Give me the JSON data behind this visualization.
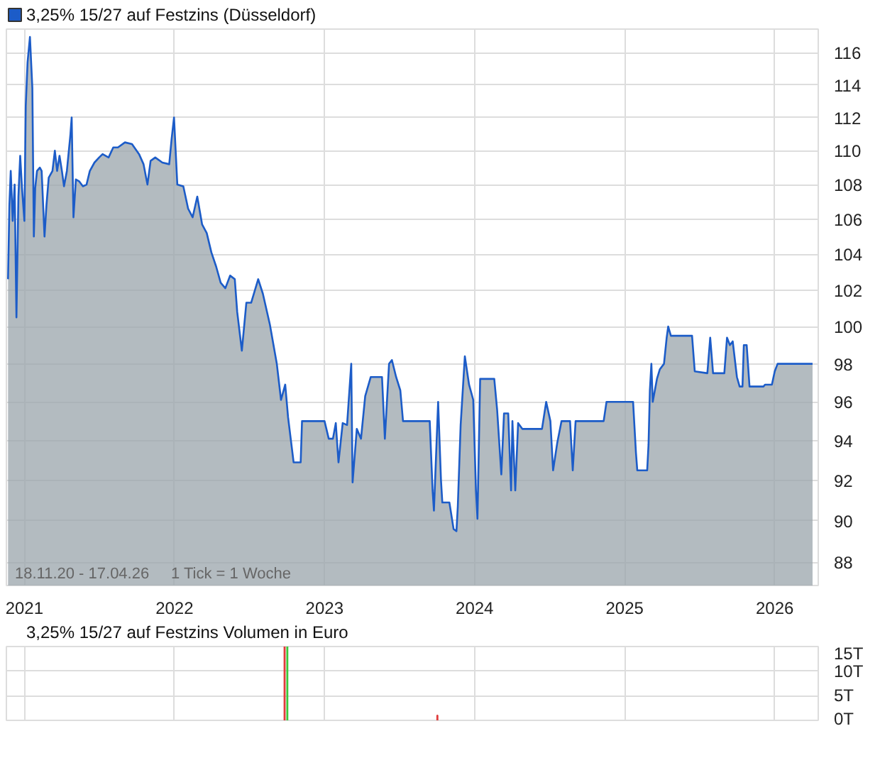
{
  "chart_data": [
    {
      "type": "area",
      "log": true,
      "legend": "top left",
      "grid": true,
      "xlim": [
        2020.88,
        2026.29
      ],
      "xticks": [
        2021,
        2022,
        2023,
        2024,
        2025,
        2026
      ],
      "ylim": [
        86.9,
        117.5
      ],
      "yticks": [
        88,
        90,
        92,
        94,
        96,
        98,
        100,
        102,
        104,
        106,
        108,
        110,
        112,
        114,
        116
      ],
      "annotations": [
        "18.11.20 - 17.04.26",
        "1 Tick = 1 Woche"
      ],
      "series": [
        {
          "name": "3,25% 15/27 auf Festzins (Düsseldorf)",
          "color": "#1c5cc8",
          "x": [
            2020.891,
            2020.9,
            2020.909,
            2020.922,
            2020.935,
            2020.947,
            2020.96,
            2020.972,
            2020.984,
            2021.0,
            2021.009,
            2021.021,
            2021.037,
            2021.053,
            2021.063,
            2021.072,
            2021.084,
            2021.103,
            2021.115,
            2021.134,
            2021.147,
            2021.162,
            2021.187,
            2021.203,
            2021.218,
            2021.234,
            2021.25,
            2021.264,
            2021.283,
            2021.306,
            2021.315,
            2021.327,
            2021.343,
            2021.364,
            2021.39,
            2021.414,
            2021.436,
            2021.467,
            2021.498,
            2021.521,
            2021.561,
            2021.592,
            2021.623,
            2021.67,
            2021.717,
            2021.764,
            2021.794,
            2021.82,
            2021.841,
            2021.872,
            2021.919,
            2021.965,
            2021.981,
            2021.997,
            2022.019,
            2022.059,
            2022.091,
            2022.121,
            2022.152,
            2022.184,
            2022.215,
            2022.246,
            2022.278,
            2022.308,
            2022.339,
            2022.371,
            2022.402,
            2022.418,
            2022.449,
            2022.479,
            2022.511,
            2022.558,
            2022.589,
            2022.636,
            2022.682,
            2022.71,
            2022.738,
            2022.757,
            2022.794,
            2022.841,
            2022.85,
            2023.0,
            2023.028,
            2023.056,
            2023.075,
            2023.093,
            2023.121,
            2023.15,
            2023.178,
            2023.187,
            2023.215,
            2023.243,
            2023.271,
            2023.308,
            2023.383,
            2023.402,
            2023.43,
            2023.449,
            2023.477,
            2023.505,
            2023.523,
            2023.701,
            2023.72,
            2023.729,
            2023.757,
            2023.776,
            2023.785,
            2023.832,
            2023.86,
            2023.879,
            2023.888,
            2023.907,
            2023.935,
            2023.963,
            2023.991,
            2024.009,
            2024.019,
            2024.037,
            2024.131,
            2024.15,
            2024.178,
            2024.196,
            2024.224,
            2024.243,
            2024.252,
            2024.271,
            2024.29,
            2024.318,
            2024.449,
            2024.477,
            2024.505,
            2024.523,
            2024.551,
            2024.579,
            2024.636,
            2024.654,
            2024.673,
            2024.86,
            2024.879,
            2025.056,
            2025.075,
            2025.084,
            2025.15,
            2025.159,
            2025.168,
            2025.178,
            2025.187,
            2025.215,
            2025.234,
            2025.262,
            2025.28,
            2025.29,
            2025.308,
            2025.449,
            2025.467,
            2025.551,
            2025.57,
            2025.589,
            2025.664,
            2025.682,
            2025.701,
            2025.72,
            2025.748,
            2025.766,
            2025.785,
            2025.794,
            2025.813,
            2025.832,
            2025.925,
            2025.935,
            2025.981,
            2026.0,
            2026.019,
            2026.252
          ],
          "values": [
            102.6,
            106.8,
            108.8,
            105.9,
            108,
            100.5,
            107.3,
            109.7,
            107.8,
            105.9,
            112.7,
            115.4,
            117.0,
            113.8,
            105.0,
            107.8,
            108.8,
            109.0,
            108.8,
            105.0,
            106.8,
            108.4,
            108.8,
            110.0,
            108.8,
            109.7,
            108.8,
            107.9,
            108.8,
            110.9,
            112.0,
            106.1,
            108.3,
            108.2,
            107.9,
            108.0,
            108.8,
            109.3,
            109.6,
            109.8,
            109.6,
            110.2,
            110.2,
            110.5,
            110.4,
            109.8,
            109.2,
            108.0,
            109.4,
            109.6,
            109.3,
            109.2,
            110.7,
            112.0,
            108.0,
            107.9,
            106.6,
            106.1,
            107.3,
            105.7,
            105.2,
            104.1,
            103.3,
            102.4,
            102.1,
            102.8,
            102.6,
            100.8,
            98.7,
            101.3,
            101.3,
            102.6,
            101.8,
            100.1,
            98.0,
            96.1,
            96.9,
            95.2,
            92.9,
            92.9,
            95.0,
            95.0,
            94.1,
            94.1,
            94.9,
            92.9,
            94.9,
            94.8,
            98.0,
            91.9,
            94.6,
            94.1,
            96.3,
            97.3,
            97.3,
            94.1,
            98.0,
            98.2,
            97.3,
            96.6,
            95.0,
            95.0,
            91.5,
            90.5,
            96.0,
            92.0,
            90.9,
            90.9,
            89.6,
            89.5,
            90.7,
            94.8,
            98.4,
            96.9,
            96.1,
            91.5,
            90.1,
            97.2,
            97.2,
            95.6,
            92.3,
            95.4,
            95.4,
            91.5,
            95.0,
            91.5,
            94.9,
            94.6,
            94.6,
            96.0,
            95.0,
            92.5,
            93.9,
            95.0,
            95.0,
            92.5,
            95.0,
            95.0,
            96.0,
            96.0,
            93.4,
            92.5,
            92.5,
            93.8,
            96.6,
            98.0,
            96.0,
            97.2,
            97.7,
            98.0,
            99.4,
            100.0,
            99.5,
            99.5,
            97.6,
            97.5,
            99.4,
            97.5,
            97.5,
            99.4,
            99.0,
            99.2,
            97.3,
            96.8,
            96.8,
            99.0,
            99.0,
            96.8,
            96.8,
            96.9,
            96.9,
            97.6,
            98.0,
            98.0
          ]
        }
      ]
    },
    {
      "type": "bar",
      "title": "3,25% 15/27 auf Festzins Volumen in Euro",
      "grid": true,
      "tick_labels": "y",
      "xlim": [
        2020.88,
        2026.29
      ],
      "xticks": [
        2021,
        2022,
        2023,
        2024,
        2025,
        2026
      ],
      "ylim": [
        0,
        15
      ],
      "yticks": [
        {
          "value": 0,
          "label": "0T"
        },
        {
          "value": 5,
          "label": "5T"
        },
        {
          "value": 10,
          "label": "10T"
        },
        {
          "value": 15,
          "label": "15T"
        }
      ],
      "series": [
        {
          "x": [
            2022.734,
            2022.752,
            2023.752
          ],
          "values": [
            15,
            15,
            1
          ],
          "colors": [
            "#e03c3c",
            "#3cc83c",
            "#e03c3c"
          ]
        }
      ]
    }
  ]
}
